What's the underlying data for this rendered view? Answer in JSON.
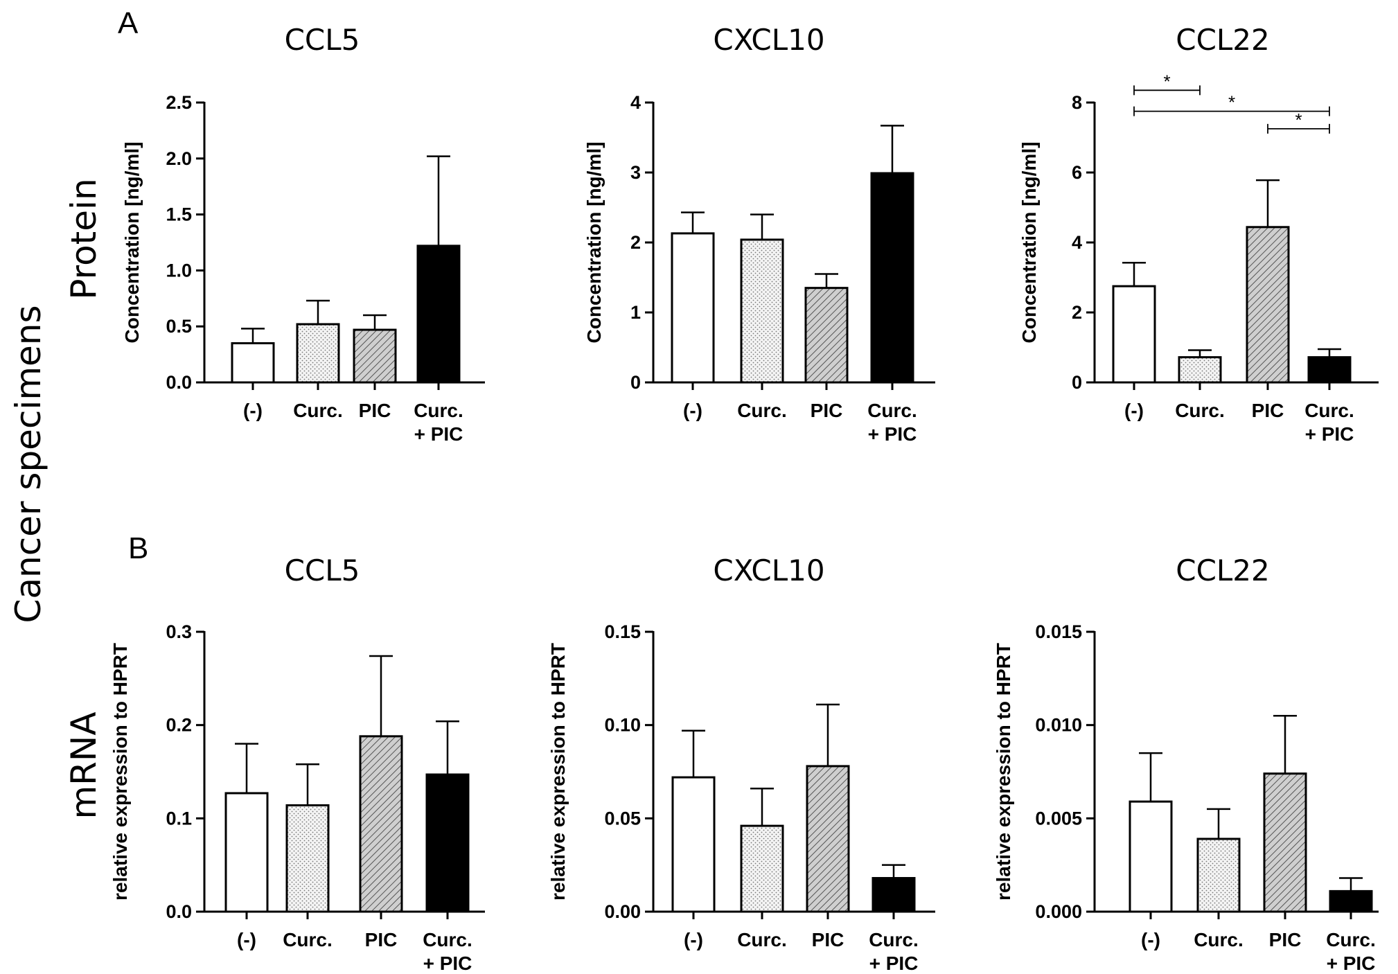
{
  "figure": {
    "row_label_main": "Cancer specimens",
    "panels": [
      {
        "letter": "A",
        "row_label": "Protein"
      },
      {
        "letter": "B",
        "row_label": "mRNA"
      }
    ]
  },
  "colors": {
    "axis": "#000000",
    "open": "#ffffff",
    "dotted": "#eeeeee",
    "hatched": "#c8c8c8",
    "solid": "#000000"
  },
  "chart_data": [
    {
      "type": "bar",
      "panel": "A",
      "title": "CCL5",
      "ylabel": "Concentration [ng/ml]",
      "categories": [
        "(-)",
        "Curc.",
        "PIC",
        "Curc.\n+ PIC"
      ],
      "values": [
        0.35,
        0.52,
        0.47,
        1.22
      ],
      "errors": [
        0.13,
        0.21,
        0.13,
        0.8
      ],
      "ylim": [
        0,
        2.5
      ],
      "yticks": [
        "0.0",
        "0.5",
        "1.0",
        "1.5",
        "2.0",
        "2.5"
      ],
      "fills": [
        "open",
        "dotted",
        "hatched",
        "solid"
      ],
      "significance": []
    },
    {
      "type": "bar",
      "panel": "A",
      "title": "CXCL10",
      "ylabel": "Concentration [ng/ml]",
      "categories": [
        "(-)",
        "Curc.",
        "PIC",
        "Curc.\n+ PIC"
      ],
      "values": [
        2.13,
        2.04,
        1.35,
        2.99
      ],
      "errors": [
        0.3,
        0.36,
        0.2,
        0.68
      ],
      "ylim": [
        0,
        4
      ],
      "yticks": [
        "0",
        "1",
        "2",
        "3",
        "4"
      ],
      "fills": [
        "open",
        "dotted",
        "hatched",
        "solid"
      ],
      "significance": []
    },
    {
      "type": "bar",
      "panel": "A",
      "title": "CCL22",
      "ylabel": "Concentration [ng/ml]",
      "categories": [
        "(-)",
        "Curc.",
        "PIC",
        "Curc.\n+ PIC"
      ],
      "values": [
        2.75,
        0.72,
        4.44,
        0.72
      ],
      "errors": [
        0.67,
        0.2,
        1.34,
        0.23
      ],
      "ylim": [
        0,
        8
      ],
      "yticks": [
        "0",
        "2",
        "4",
        "6",
        "8"
      ],
      "fills": [
        "open",
        "dotted",
        "hatched",
        "solid"
      ],
      "significance": [
        {
          "from": 0,
          "to": 1,
          "level": 8.35,
          "label": "*"
        },
        {
          "from": 0,
          "to": 3,
          "level": 7.75,
          "label": "*"
        },
        {
          "from": 2,
          "to": 3,
          "level": 7.25,
          "label": "*"
        }
      ]
    },
    {
      "type": "bar",
      "panel": "B",
      "title": "CCL5",
      "ylabel": "relative expression to HPRT",
      "categories": [
        "(-)",
        "Curc.",
        "PIC",
        "Curc.\n+ PIC"
      ],
      "values": [
        0.127,
        0.114,
        0.188,
        0.147
      ],
      "errors": [
        0.053,
        0.044,
        0.086,
        0.057
      ],
      "ylim": [
        0,
        0.3
      ],
      "yticks": [
        "0.0",
        "0.1",
        "0.2",
        "0.3"
      ],
      "fills": [
        "open",
        "dotted",
        "hatched",
        "solid"
      ],
      "significance": []
    },
    {
      "type": "bar",
      "panel": "B",
      "title": "CXCL10",
      "ylabel": "relative expression to HPRT",
      "categories": [
        "(-)",
        "Curc.",
        "PIC",
        "Curc.\n+ PIC"
      ],
      "values": [
        0.072,
        0.046,
        0.078,
        0.018
      ],
      "errors": [
        0.025,
        0.02,
        0.033,
        0.007
      ],
      "ylim": [
        0,
        0.15
      ],
      "yticks": [
        "0.00",
        "0.05",
        "0.10",
        "0.15"
      ],
      "fills": [
        "open",
        "dotted",
        "hatched",
        "solid"
      ],
      "significance": []
    },
    {
      "type": "bar",
      "panel": "B",
      "title": "CCL22",
      "ylabel": "relative expression to HPRT",
      "categories": [
        "(-)",
        "Curc.",
        "PIC",
        "Curc.\n+ PIC"
      ],
      "values": [
        0.0059,
        0.0039,
        0.0074,
        0.0011
      ],
      "errors": [
        0.0026,
        0.0016,
        0.0031,
        0.0007
      ],
      "ylim": [
        0,
        0.015
      ],
      "yticks": [
        "0.000",
        "0.005",
        "0.010",
        "0.015"
      ],
      "fills": [
        "open",
        "dotted",
        "hatched",
        "solid"
      ],
      "significance": []
    }
  ]
}
